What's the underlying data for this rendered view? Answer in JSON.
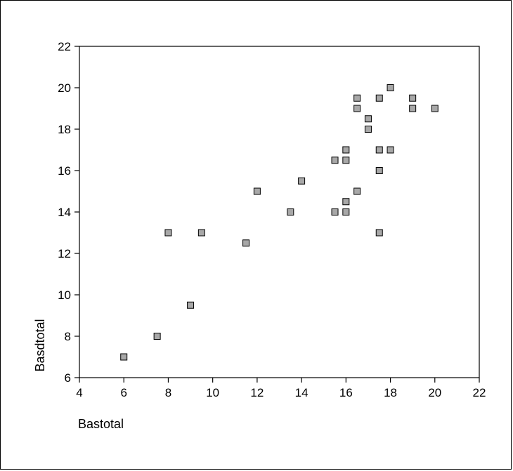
{
  "chart_data": {
    "type": "scatter",
    "title": "",
    "xlabel": "Bastotal",
    "ylabel": "Basdtotal",
    "xlim": [
      4,
      22
    ],
    "ylim": [
      6,
      22
    ],
    "xticks": [
      4,
      6,
      8,
      10,
      12,
      14,
      16,
      18,
      20,
      22
    ],
    "yticks": [
      6,
      8,
      10,
      12,
      14,
      16,
      18,
      20,
      22
    ],
    "grid": false,
    "legend": "none",
    "marker_color": "#a8a8a8",
    "points": [
      {
        "x": 6,
        "y": 7
      },
      {
        "x": 7.5,
        "y": 8
      },
      {
        "x": 8,
        "y": 13
      },
      {
        "x": 9,
        "y": 9.5
      },
      {
        "x": 9.5,
        "y": 13
      },
      {
        "x": 11.5,
        "y": 12.5
      },
      {
        "x": 12,
        "y": 15
      },
      {
        "x": 13.5,
        "y": 14
      },
      {
        "x": 14,
        "y": 15.5
      },
      {
        "x": 15.5,
        "y": 16.5
      },
      {
        "x": 15.5,
        "y": 14
      },
      {
        "x": 16,
        "y": 17
      },
      {
        "x": 16,
        "y": 16.5
      },
      {
        "x": 16,
        "y": 14.5
      },
      {
        "x": 16,
        "y": 14
      },
      {
        "x": 16.5,
        "y": 19.5
      },
      {
        "x": 16.5,
        "y": 19
      },
      {
        "x": 16.5,
        "y": 15
      },
      {
        "x": 17,
        "y": 18.5
      },
      {
        "x": 17,
        "y": 18
      },
      {
        "x": 17.5,
        "y": 19.5
      },
      {
        "x": 17.5,
        "y": 17
      },
      {
        "x": 17.5,
        "y": 16
      },
      {
        "x": 17.5,
        "y": 13
      },
      {
        "x": 18,
        "y": 20
      },
      {
        "x": 18,
        "y": 17
      },
      {
        "x": 19,
        "y": 19.5
      },
      {
        "x": 19,
        "y": 19
      },
      {
        "x": 20,
        "y": 19
      }
    ]
  }
}
